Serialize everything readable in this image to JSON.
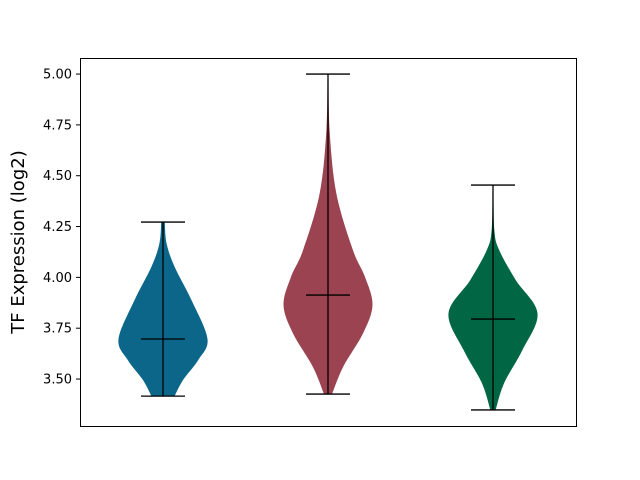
{
  "chart_data": {
    "type": "violin",
    "title": "",
    "xlabel": "",
    "ylabel": "TF Expression (log2)",
    "ylim": [
      3.264,
      5.079
    ],
    "yticks": [
      "3.50",
      "3.75",
      "4.00",
      "4.25",
      "4.50",
      "4.75",
      "5.00"
    ],
    "grid": false,
    "legend": "none",
    "violins": [
      {
        "color": "#0b6689",
        "min": 3.416,
        "max": 4.272,
        "median": 3.697,
        "density_profile": [
          [
            3.416,
            0.26
          ],
          [
            3.495,
            0.45
          ],
          [
            3.593,
            0.79
          ],
          [
            3.697,
            1.0
          ],
          [
            3.888,
            0.64
          ],
          [
            4.052,
            0.26
          ],
          [
            4.167,
            0.08
          ],
          [
            4.272,
            0.04
          ]
        ]
      },
      {
        "color": "#9b4350",
        "min": 3.426,
        "max": 5.0,
        "median": 3.913,
        "density_profile": [
          [
            3.426,
            0.09
          ],
          [
            3.56,
            0.34
          ],
          [
            3.726,
            0.79
          ],
          [
            3.864,
            1.0
          ],
          [
            4.003,
            0.83
          ],
          [
            4.134,
            0.56
          ],
          [
            4.41,
            0.19
          ],
          [
            4.71,
            0.04
          ],
          [
            5.0,
            0.01
          ]
        ]
      },
      {
        "color": "#016643",
        "min": 3.348,
        "max": 4.454,
        "median": 3.795,
        "density_profile": [
          [
            3.348,
            0.06
          ],
          [
            3.48,
            0.25
          ],
          [
            3.642,
            0.66
          ],
          [
            3.823,
            1.0
          ],
          [
            3.987,
            0.51
          ],
          [
            4.134,
            0.14
          ],
          [
            4.233,
            0.03
          ],
          [
            4.454,
            0.01
          ]
        ]
      }
    ]
  }
}
